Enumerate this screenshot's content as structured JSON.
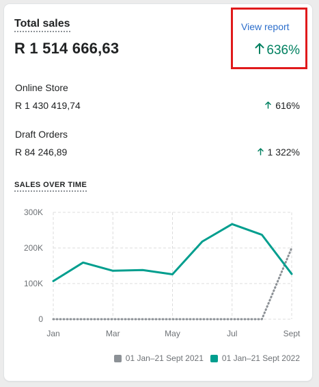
{
  "card": {
    "title": "Total sales",
    "total": "R 1 514 666,63",
    "view_report": "View report",
    "change_pct": "636%",
    "icons": {
      "up": "arrow-up-icon"
    },
    "accent_color": "#008060",
    "link_color": "#2c6ecb",
    "highlight_color": "#e0191b"
  },
  "breakdown": [
    {
      "label": "Online Store",
      "value": "R 1 430 419,74",
      "pct": "616%"
    },
    {
      "label": "Draft Orders",
      "value": "R 84 246,89",
      "pct": "1 322%"
    }
  ],
  "chart_data": {
    "type": "line",
    "title": "SALES OVER TIME",
    "xlabel": "",
    "ylabel": "",
    "y_ticks": [
      "0",
      "100K",
      "200K",
      "300K"
    ],
    "x_ticks": [
      "Jan",
      "Mar",
      "May",
      "Jul",
      "Sept"
    ],
    "ylim": [
      0,
      300000
    ],
    "grid": true,
    "legend_position": "bottom-right",
    "x": [
      1,
      2,
      3,
      4,
      5,
      6,
      7,
      8,
      9
    ],
    "series": [
      {
        "name": "01 Jan–21 Sept 2021",
        "color": "#8c9196",
        "style": "dotted",
        "values": [
          0,
          0,
          0,
          0,
          0,
          0,
          0,
          0,
          200000
        ]
      },
      {
        "name": "01 Jan–21 Sept 2022",
        "color": "#009e8e",
        "style": "solid",
        "values": [
          107000,
          159000,
          136000,
          138000,
          126000,
          218000,
          267000,
          237000,
          127000
        ]
      }
    ]
  }
}
